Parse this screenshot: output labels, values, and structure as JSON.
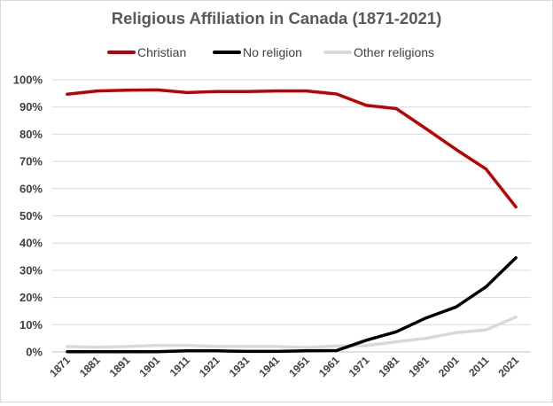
{
  "chart_data": {
    "type": "line",
    "title": "Religious Affiliation in Canada (1871-2021)",
    "xlabel": "",
    "ylabel": "",
    "ylim": [
      0,
      100
    ],
    "grid": true,
    "legend_position": "top",
    "categories": [
      "1871",
      "1881",
      "1891",
      "1901",
      "1911",
      "1921",
      "1931",
      "1941",
      "1951",
      "1961",
      "1971",
      "1981",
      "1991",
      "2001",
      "2011",
      "2021"
    ],
    "y_ticks": [
      "0%",
      "10%",
      "20%",
      "30%",
      "40%",
      "50%",
      "60%",
      "70%",
      "80%",
      "90%",
      "100%"
    ],
    "series": [
      {
        "name": "Christian",
        "color": "#c00000",
        "values": [
          94.7,
          95.9,
          96.2,
          96.3,
          95.3,
          95.7,
          95.7,
          95.9,
          95.9,
          94.8,
          90.6,
          89.4,
          82.0,
          74.4,
          67.2,
          53.3
        ]
      },
      {
        "name": "No religion",
        "color": "#000000",
        "values": [
          0.1,
          0.1,
          0.1,
          0.1,
          0.4,
          0.4,
          0.2,
          0.2,
          0.4,
          0.5,
          4.3,
          7.4,
          12.5,
          16.5,
          23.9,
          34.6
        ]
      },
      {
        "name": "Other religions",
        "color": "#d9d9d9",
        "values": [
          2.0,
          1.7,
          2.0,
          2.4,
          2.4,
          2.0,
          2.0,
          2.0,
          1.6,
          2.2,
          2.3,
          3.7,
          5.0,
          7.1,
          8.1,
          12.8
        ]
      }
    ]
  }
}
